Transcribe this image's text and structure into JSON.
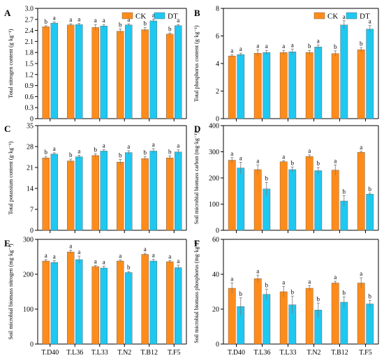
{
  "colors": {
    "CK": "#ff8c1a",
    "DT": "#1ec8f0",
    "axis": "#000000",
    "error": "#777777"
  },
  "categories": [
    "T.D40",
    "T.L36",
    "T.L33",
    "T.N2",
    "T.B12",
    "T.F5"
  ],
  "legend": {
    "ck": "CK",
    "dt": "DT",
    "placement": "top-right"
  },
  "chart_data": [
    {
      "panel": "A",
      "type": "bar",
      "ylabel": "Total nitrogen content (g·kg⁻¹)",
      "ylim": [
        0,
        3.0
      ],
      "yticks": [
        0,
        0.3,
        0.6,
        0.9,
        1.2,
        1.5,
        1.8,
        2.1,
        2.4,
        2.7,
        3.0
      ],
      "ytick_labels": [
        "0",
        "0.3",
        "0.6",
        "0.9",
        "1.2",
        "1.5",
        "1.8",
        "2.1",
        "2.4",
        "2.7",
        "3.0"
      ],
      "show_legend": true,
      "series": [
        {
          "name": "CK",
          "values": [
            2.5,
            2.55,
            2.48,
            2.38,
            2.42,
            2.3
          ],
          "errors": [
            0.03,
            0.03,
            0.08,
            0.06,
            0.06,
            0.03
          ],
          "letters": [
            "b",
            "a",
            "a",
            "b",
            "b",
            "b"
          ]
        },
        {
          "name": "DT",
          "values": [
            2.6,
            2.56,
            2.52,
            2.55,
            2.66,
            2.53
          ],
          "errors": [
            0.03,
            0.03,
            0.04,
            0.03,
            0.05,
            0.03
          ],
          "letters": [
            "a",
            "a",
            "a",
            "a",
            "a",
            "a"
          ]
        }
      ]
    },
    {
      "panel": "B",
      "type": "bar",
      "ylabel": "Total phosphorus content (g·kg⁻¹)",
      "ylim": [
        0,
        8
      ],
      "yticks": [
        0,
        2,
        4,
        6,
        8
      ],
      "ytick_labels": [
        "0",
        "2",
        "4",
        "6",
        "8"
      ],
      "show_legend": true,
      "series": [
        {
          "name": "CK",
          "values": [
            4.55,
            4.75,
            4.8,
            4.8,
            4.72,
            5.0
          ],
          "errors": [
            0.08,
            0.25,
            0.15,
            0.15,
            0.2,
            0.15
          ],
          "letters": [
            "a",
            "a",
            "a",
            "b",
            "b",
            "b"
          ]
        },
        {
          "name": "DT",
          "values": [
            4.65,
            4.8,
            4.85,
            5.2,
            6.8,
            6.5
          ],
          "errors": [
            0.1,
            0.15,
            0.2,
            0.15,
            0.3,
            0.25
          ],
          "letters": [
            "a",
            "a",
            "a",
            "a",
            "a",
            "a"
          ]
        }
      ]
    },
    {
      "panel": "C",
      "type": "bar",
      "ylabel": "Total potassium content (g·kg⁻¹)",
      "ylim": [
        0,
        35
      ],
      "yticks": [
        0,
        7,
        14,
        21,
        28,
        35
      ],
      "ytick_labels": [
        "0",
        "7",
        "14",
        "21",
        "28",
        "35"
      ],
      "show_legend": false,
      "series": [
        {
          "name": "CK",
          "values": [
            24.2,
            23.2,
            25.0,
            22.8,
            24.0,
            24.2
          ],
          "errors": [
            0.5,
            0.6,
            0.6,
            0.9,
            0.6,
            0.7
          ],
          "letters": [
            "b",
            "b",
            "b",
            "b",
            "b",
            "b"
          ]
        },
        {
          "name": "DT",
          "values": [
            25.5,
            24.6,
            26.5,
            26.0,
            26.5,
            26.2
          ],
          "errors": [
            0.4,
            0.5,
            0.5,
            0.6,
            0.8,
            0.7
          ],
          "letters": [
            "a",
            "a",
            "a",
            "a",
            "a",
            "a"
          ]
        }
      ]
    },
    {
      "panel": "D",
      "type": "bar",
      "ylabel": "Soil microbial biomass carbon (mg·kg⁻¹)",
      "ylim": [
        0,
        400
      ],
      "yticks": [
        0,
        100,
        200,
        300,
        400
      ],
      "ytick_labels": [
        "0",
        "100",
        "200",
        "300",
        "400"
      ],
      "show_legend": false,
      "series": [
        {
          "name": "CK",
          "values": [
            268,
            232,
            262,
            282,
            230,
            298
          ],
          "errors": [
            10,
            18,
            4,
            6,
            20,
            4
          ],
          "letters": [
            "a",
            "a",
            "a",
            "a",
            "a",
            "a"
          ]
        },
        {
          "name": "DT",
          "values": [
            238,
            158,
            232,
            228,
            112,
            138
          ],
          "errors": [
            22,
            25,
            10,
            12,
            20,
            4
          ],
          "letters": [
            "a",
            "b",
            "b",
            "b",
            "b",
            "b"
          ]
        }
      ]
    },
    {
      "panel": "E",
      "type": "bar",
      "ylabel": "Soil microbial biomass nitrogen (mg·kg⁻¹)",
      "ylim": [
        0,
        300
      ],
      "yticks": [
        0,
        100,
        200,
        300
      ],
      "ytick_labels": [
        "0",
        "100",
        "200",
        "300"
      ],
      "show_legend": false,
      "series": [
        {
          "name": "CK",
          "values": [
            238,
            264,
            222,
            238,
            257,
            236
          ],
          "errors": [
            4,
            5,
            3,
            3,
            3,
            3
          ],
          "letters": [
            "a",
            "a",
            "a",
            "a",
            "a",
            "a"
          ]
        },
        {
          "name": "DT",
          "values": [
            234,
            242,
            218,
            205,
            238,
            219
          ],
          "errors": [
            5,
            10,
            5,
            3,
            5,
            7
          ],
          "letters": [
            "a",
            "a",
            "a",
            "b",
            "a",
            "a"
          ]
        }
      ]
    },
    {
      "panel": "F",
      "type": "bar",
      "ylabel": "Soil microbial biomass phosphorus (mg·kg⁻¹)",
      "ylim": [
        0,
        60
      ],
      "yticks": [
        0,
        20,
        40,
        60
      ],
      "ytick_labels": [
        "0",
        "20",
        "40",
        "60"
      ],
      "show_legend": false,
      "series": [
        {
          "name": "CK",
          "values": [
            32,
            37.5,
            30,
            32,
            35,
            35
          ],
          "errors": [
            3,
            2,
            3,
            1.5,
            1,
            3
          ],
          "letters": [
            "a",
            "a",
            "a",
            "a",
            "a",
            "a"
          ]
        },
        {
          "name": "DT",
          "values": [
            21.5,
            28.5,
            22.5,
            19.5,
            24,
            23
          ],
          "errors": [
            5,
            3,
            5,
            4,
            3,
            2
          ],
          "letters": [
            "b",
            "b",
            "b",
            "b",
            "b",
            "b"
          ]
        }
      ]
    }
  ]
}
